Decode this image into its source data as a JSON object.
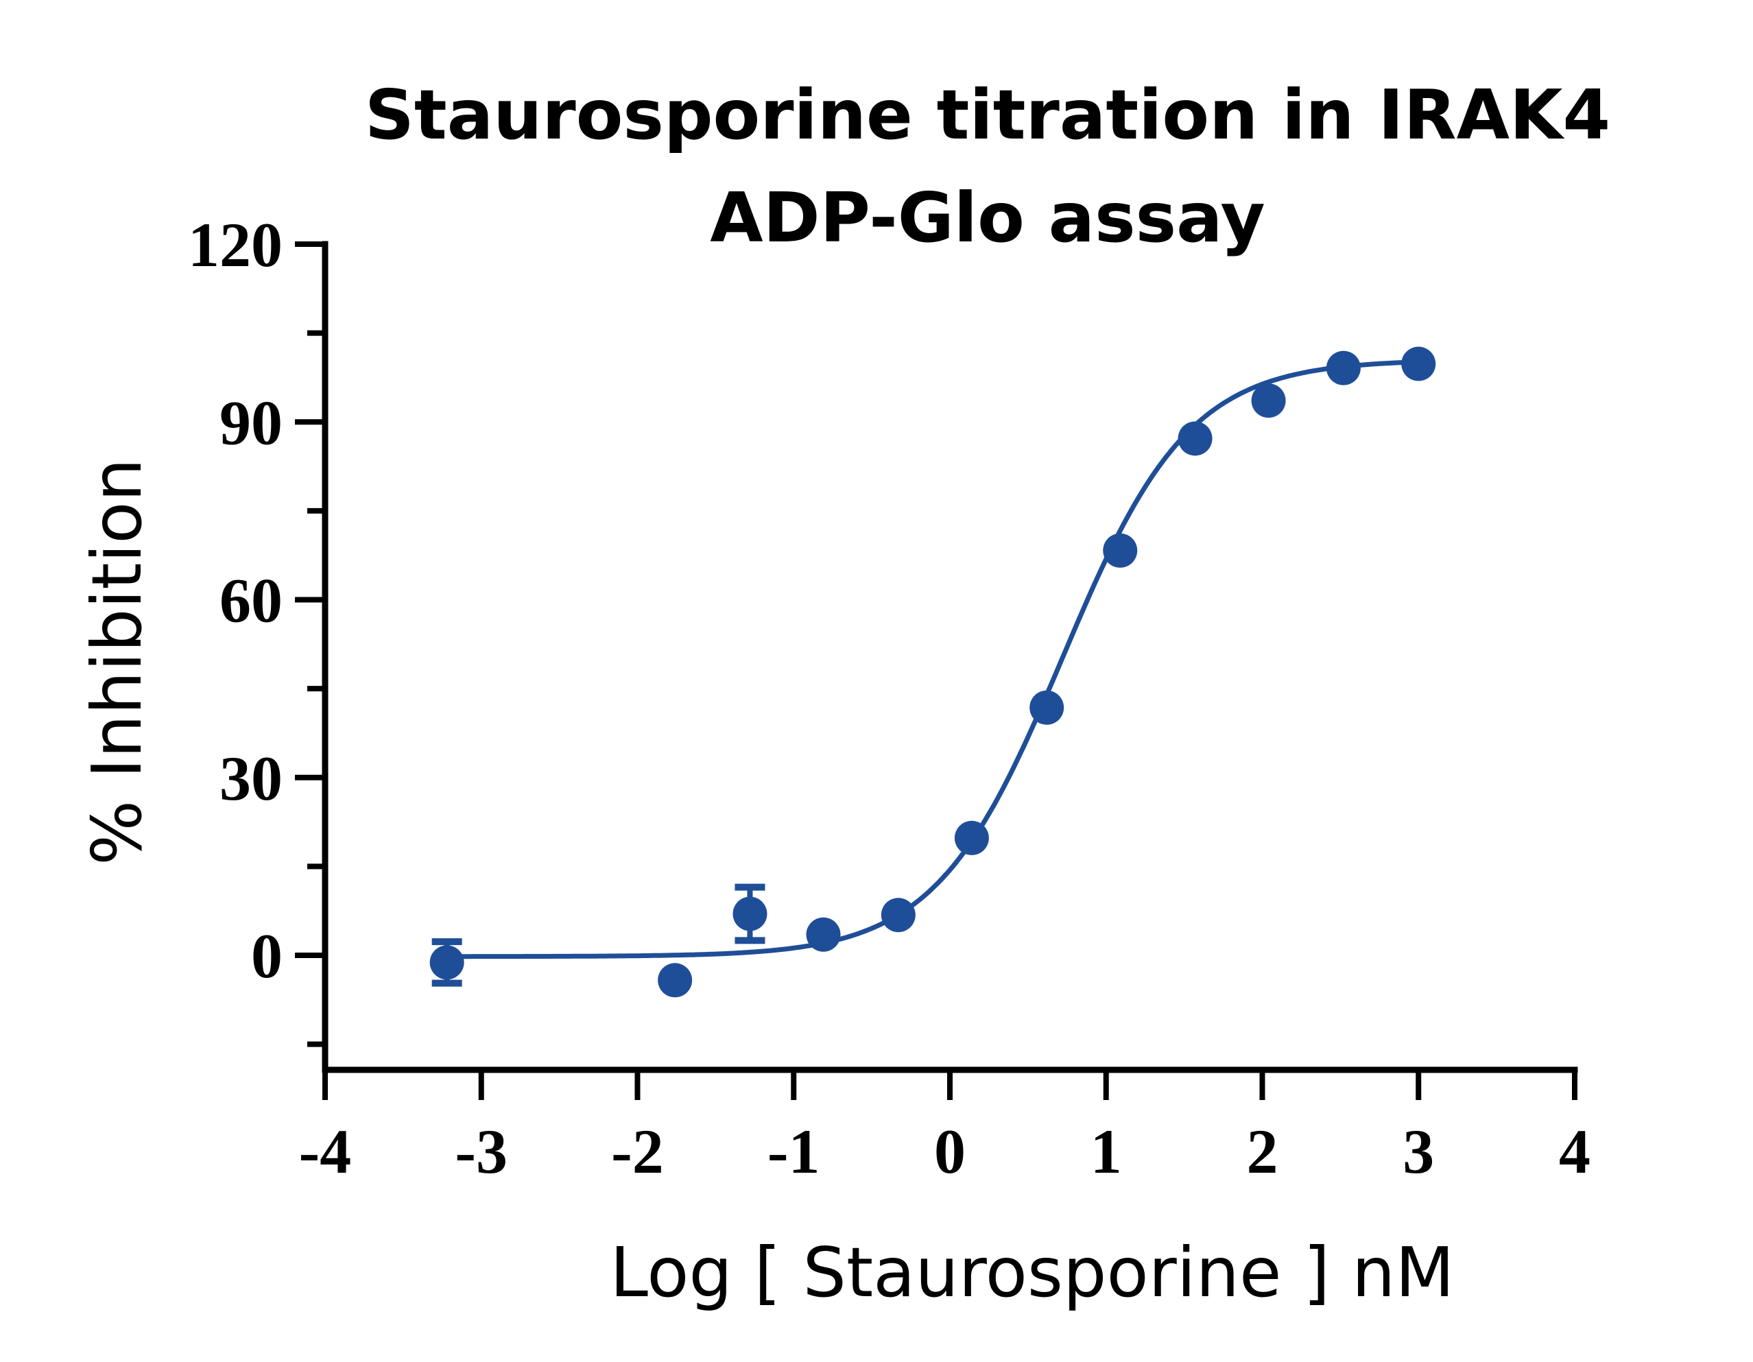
{
  "chart_data": {
    "type": "scatter",
    "title": [
      "Staurosporine titration in IRAK4",
      "ADP-Glo assay"
    ],
    "xlabel": "Log [ Staurosporine  ] nM",
    "ylabel": "% Inhibition",
    "xlim": [
      -4,
      4
    ],
    "ylim": [
      -20,
      120
    ],
    "xticks": [
      -4,
      -3,
      -2,
      -1,
      0,
      1,
      2,
      3,
      4
    ],
    "xtick_labels": [
      "-4",
      "-3",
      "-2",
      "-1",
      "0",
      "1",
      "2",
      "3",
      "4"
    ],
    "yticks": [
      0,
      30,
      60,
      90,
      120
    ],
    "ytick_labels": [
      "0",
      "30",
      "60",
      "90",
      "120"
    ],
    "grid": false,
    "color": "#1f4e98",
    "series": [
      {
        "points": [
          {
            "x": -3.22,
            "y": -1.2,
            "err": 3.5
          },
          {
            "x": -1.76,
            "y": -4.2,
            "err": 0
          },
          {
            "x": -1.28,
            "y": 7.0,
            "err": 4.5
          },
          {
            "x": -0.81,
            "y": 3.5,
            "err": 0
          },
          {
            "x": -0.33,
            "y": 6.8,
            "err": 0
          },
          {
            "x": 0.14,
            "y": 19.8,
            "err": 0
          },
          {
            "x": 0.62,
            "y": 41.8,
            "err": 0
          },
          {
            "x": 1.09,
            "y": 68.3,
            "err": 0
          },
          {
            "x": 1.57,
            "y": 87.2,
            "err": 0
          },
          {
            "x": 2.04,
            "y": 93.6,
            "err": 0
          },
          {
            "x": 2.52,
            "y": 99.1,
            "err": 0
          },
          {
            "x": 3.0,
            "y": 99.8,
            "err": 0
          }
        ],
        "fit": {
          "bottom": -0.2,
          "top": 100.5,
          "logIC50": 0.72,
          "hill": 1.07,
          "x_range": [
            -3.22,
            3.0
          ]
        }
      }
    ]
  }
}
